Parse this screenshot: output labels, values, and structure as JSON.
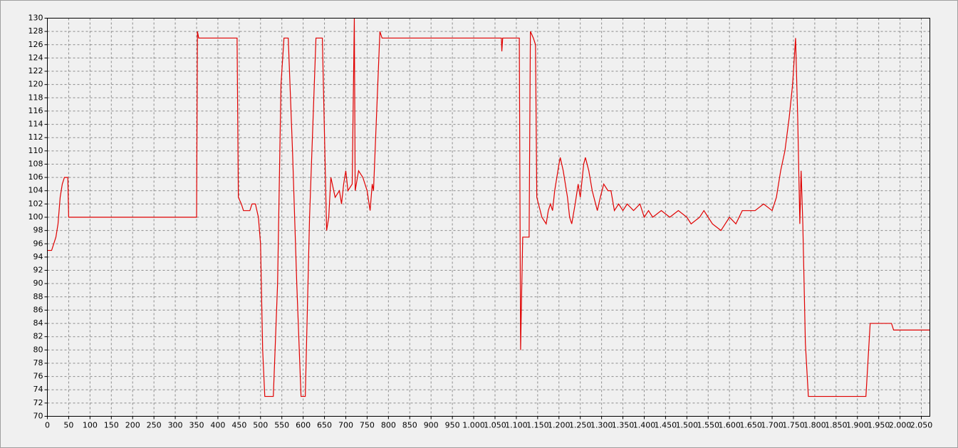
{
  "chart_data": {
    "type": "line",
    "x": [
      0,
      10,
      20,
      25,
      30,
      35,
      40,
      48,
      50,
      350,
      352,
      355,
      445,
      448,
      455,
      460,
      475,
      480,
      488,
      495,
      500,
      505,
      510,
      530,
      540,
      548,
      555,
      565,
      575,
      585,
      595,
      605,
      615,
      630,
      645,
      655,
      660,
      665,
      675,
      685,
      690,
      695,
      700,
      705,
      715,
      720,
      722,
      730,
      740,
      750,
      757,
      762,
      765,
      780,
      785,
      1065,
      1066,
      1068,
      1107,
      1110,
      1112,
      1115,
      1130,
      1133,
      1140,
      1145,
      1148,
      1152,
      1160,
      1170,
      1175,
      1180,
      1185,
      1190,
      1200,
      1203,
      1210,
      1220,
      1225,
      1230,
      1238,
      1245,
      1250,
      1258,
      1262,
      1270,
      1278,
      1290,
      1297,
      1305,
      1315,
      1322,
      1330,
      1340,
      1350,
      1360,
      1375,
      1390,
      1400,
      1410,
      1420,
      1440,
      1460,
      1480,
      1500,
      1510,
      1530,
      1540,
      1550,
      1560,
      1580,
      1590,
      1600,
      1615,
      1630,
      1660,
      1680,
      1700,
      1710,
      1720,
      1730,
      1740,
      1748,
      1755,
      1760,
      1765,
      1768,
      1772,
      1778,
      1785,
      1920,
      1930,
      1980,
      1985,
      2070
    ],
    "series": [
      {
        "color": "#e00000",
        "values": [
          95,
          95,
          97,
          99,
          103,
          105,
          106,
          106,
          100,
          100,
          128,
          127,
          127,
          103,
          102,
          101,
          101,
          102,
          102,
          100,
          96,
          80,
          73,
          73,
          90,
          120,
          127,
          127,
          110,
          90,
          73,
          73,
          100,
          127,
          127,
          98,
          100,
          106,
          103,
          104,
          102,
          105,
          107,
          104,
          105,
          130,
          104,
          107,
          106,
          104,
          101,
          105,
          104,
          128,
          127,
          127,
          125,
          127,
          127,
          80,
          87,
          97,
          97,
          128,
          127,
          126,
          103,
          102,
          100,
          99,
          101,
          102,
          101,
          104,
          108,
          109,
          107,
          103,
          100,
          99,
          102,
          105,
          103,
          108,
          109,
          107,
          104,
          101,
          103,
          105,
          104,
          104,
          101,
          102,
          101,
          102,
          101,
          102,
          100,
          101,
          100,
          101,
          100,
          101,
          100,
          99,
          100,
          101,
          100,
          99,
          98,
          99,
          100,
          99,
          101,
          101,
          102,
          101,
          103,
          107,
          110,
          115,
          120,
          127,
          115,
          99,
          107,
          99,
          81,
          73,
          73,
          84,
          84,
          83,
          83
        ]
      }
    ],
    "xlim": [
      0,
      2070
    ],
    "ylim": [
      70,
      130
    ],
    "xticks": [
      0,
      50,
      100,
      150,
      200,
      250,
      300,
      350,
      400,
      450,
      500,
      550,
      600,
      650,
      700,
      750,
      800,
      850,
      900,
      950,
      {
        "value": 1000,
        "label": "1.000"
      },
      {
        "value": 1050,
        "label": "1.050"
      },
      {
        "value": 1100,
        "label": "1.100"
      },
      {
        "value": 1150,
        "label": "1.150"
      },
      {
        "value": 1200,
        "label": "1.200"
      },
      {
        "value": 1250,
        "label": "1.250"
      },
      {
        "value": 1300,
        "label": "1.300"
      },
      {
        "value": 1350,
        "label": "1.350"
      },
      {
        "value": 1400,
        "label": "1.400"
      },
      {
        "value": 1450,
        "label": "1.450"
      },
      {
        "value": 1500,
        "label": "1.500"
      },
      {
        "value": 1550,
        "label": "1.550"
      },
      {
        "value": 1600,
        "label": "1.600"
      },
      {
        "value": 1650,
        "label": "1.650"
      },
      {
        "value": 1700,
        "label": "1.700"
      },
      {
        "value": 1750,
        "label": "1.750"
      },
      {
        "value": 1800,
        "label": "1.800"
      },
      {
        "value": 1850,
        "label": "1.850"
      },
      {
        "value": 1900,
        "label": "1.900"
      },
      {
        "value": 1950,
        "label": "1.950"
      },
      {
        "value": 2000,
        "label": "2.000"
      },
      {
        "value": 2050,
        "label": "2.050"
      }
    ],
    "yticks": [
      70,
      72,
      74,
      76,
      78,
      80,
      82,
      84,
      86,
      88,
      90,
      92,
      94,
      96,
      98,
      100,
      102,
      104,
      106,
      108,
      110,
      112,
      114,
      116,
      118,
      120,
      122,
      124,
      126,
      128,
      130
    ],
    "grid": true
  }
}
